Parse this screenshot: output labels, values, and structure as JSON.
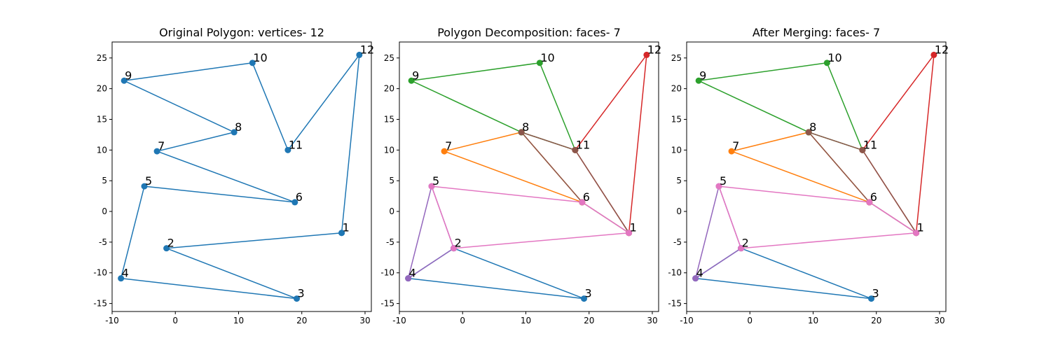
{
  "chart_data": [
    {
      "type": "line",
      "title": "Original Polygon: vertices- 12",
      "xlim": [
        -10,
        31
      ],
      "ylim": [
        -16.3,
        27.6
      ],
      "xticks": [
        -10,
        0,
        10,
        20,
        30
      ],
      "yticks": [
        -15,
        -10,
        -5,
        0,
        5,
        10,
        15,
        20,
        25
      ],
      "grid": false,
      "vertices": [
        {
          "label": "1",
          "x": 26.3,
          "y": -3.5
        },
        {
          "label": "2",
          "x": -1.4,
          "y": -6.0
        },
        {
          "label": "3",
          "x": 19.2,
          "y": -14.2
        },
        {
          "label": "4",
          "x": -8.6,
          "y": -10.9
        },
        {
          "label": "5",
          "x": -4.9,
          "y": 4.1
        },
        {
          "label": "6",
          "x": 18.9,
          "y": 1.5
        },
        {
          "label": "7",
          "x": -2.9,
          "y": 9.8
        },
        {
          "label": "8",
          "x": 9.3,
          "y": 12.9
        },
        {
          "label": "9",
          "x": -8.1,
          "y": 21.3
        },
        {
          "label": "10",
          "x": 12.2,
          "y": 24.2
        },
        {
          "label": "11",
          "x": 17.8,
          "y": 10.0
        },
        {
          "label": "12",
          "x": 29.1,
          "y": 25.5
        }
      ],
      "faces": [
        {
          "color": "#1f77b4",
          "vertices": [
            "1",
            "2",
            "3",
            "4",
            "5",
            "6",
            "7",
            "8",
            "9",
            "10",
            "11",
            "12",
            "1"
          ]
        }
      ]
    },
    {
      "type": "line",
      "title": "Polygon Decomposition: faces- 7",
      "xlim": [
        -10,
        31
      ],
      "ylim": [
        -16.3,
        27.6
      ],
      "xticks": [
        -10,
        0,
        10,
        20,
        30
      ],
      "yticks": [
        -15,
        -10,
        -5,
        0,
        5,
        10,
        15,
        20,
        25
      ],
      "grid": false,
      "vertices": [
        {
          "label": "1",
          "x": 26.3,
          "y": -3.5
        },
        {
          "label": "2",
          "x": -1.4,
          "y": -6.0
        },
        {
          "label": "3",
          "x": 19.2,
          "y": -14.2
        },
        {
          "label": "4",
          "x": -8.6,
          "y": -10.9
        },
        {
          "label": "5",
          "x": -4.9,
          "y": 4.1
        },
        {
          "label": "6",
          "x": 18.9,
          "y": 1.5
        },
        {
          "label": "7",
          "x": -2.9,
          "y": 9.8
        },
        {
          "label": "8",
          "x": 9.3,
          "y": 12.9
        },
        {
          "label": "9",
          "x": -8.1,
          "y": 21.3
        },
        {
          "label": "10",
          "x": 12.2,
          "y": 24.2
        },
        {
          "label": "11",
          "x": 17.8,
          "y": 10.0
        },
        {
          "label": "12",
          "x": 29.1,
          "y": 25.5
        }
      ],
      "faces": [
        {
          "color": "#1f77b4",
          "vertices": [
            "2",
            "3",
            "4",
            "2"
          ]
        },
        {
          "color": "#ff7f0e",
          "vertices": [
            "6",
            "7",
            "8",
            "6"
          ]
        },
        {
          "color": "#2ca02c",
          "vertices": [
            "8",
            "9",
            "10",
            "11",
            "8"
          ]
        },
        {
          "color": "#d62728",
          "vertices": [
            "1",
            "11",
            "12",
            "1"
          ]
        },
        {
          "color": "#9467bd",
          "vertices": [
            "2",
            "4",
            "5",
            "2"
          ]
        },
        {
          "color": "#8c564b",
          "vertices": [
            "1",
            "6",
            "8",
            "11",
            "1"
          ]
        },
        {
          "color": "#e377c2",
          "vertices": [
            "1",
            "2",
            "5",
            "6",
            "1"
          ]
        }
      ]
    },
    {
      "type": "line",
      "title": "After Merging: faces- 7",
      "xlim": [
        -10,
        31
      ],
      "ylim": [
        -16.3,
        27.6
      ],
      "xticks": [
        -10,
        0,
        10,
        20,
        30
      ],
      "yticks": [
        -15,
        -10,
        -5,
        0,
        5,
        10,
        15,
        20,
        25
      ],
      "grid": false,
      "vertices": [
        {
          "label": "1",
          "x": 26.3,
          "y": -3.5
        },
        {
          "label": "2",
          "x": -1.4,
          "y": -6.0
        },
        {
          "label": "3",
          "x": 19.2,
          "y": -14.2
        },
        {
          "label": "4",
          "x": -8.6,
          "y": -10.9
        },
        {
          "label": "5",
          "x": -4.9,
          "y": 4.1
        },
        {
          "label": "6",
          "x": 18.9,
          "y": 1.5
        },
        {
          "label": "7",
          "x": -2.9,
          "y": 9.8
        },
        {
          "label": "8",
          "x": 9.3,
          "y": 12.9
        },
        {
          "label": "9",
          "x": -8.1,
          "y": 21.3
        },
        {
          "label": "10",
          "x": 12.2,
          "y": 24.2
        },
        {
          "label": "11",
          "x": 17.8,
          "y": 10.0
        },
        {
          "label": "12",
          "x": 29.1,
          "y": 25.5
        }
      ],
      "faces": [
        {
          "color": "#1f77b4",
          "vertices": [
            "2",
            "3",
            "4",
            "2"
          ]
        },
        {
          "color": "#ff7f0e",
          "vertices": [
            "6",
            "7",
            "8",
            "6"
          ]
        },
        {
          "color": "#2ca02c",
          "vertices": [
            "8",
            "9",
            "10",
            "11",
            "8"
          ]
        },
        {
          "color": "#d62728",
          "vertices": [
            "1",
            "11",
            "12",
            "1"
          ]
        },
        {
          "color": "#9467bd",
          "vertices": [
            "2",
            "4",
            "5",
            "2"
          ]
        },
        {
          "color": "#8c564b",
          "vertices": [
            "1",
            "6",
            "8",
            "11",
            "1"
          ]
        },
        {
          "color": "#e377c2",
          "vertices": [
            "1",
            "2",
            "5",
            "6",
            "1"
          ]
        }
      ]
    }
  ]
}
